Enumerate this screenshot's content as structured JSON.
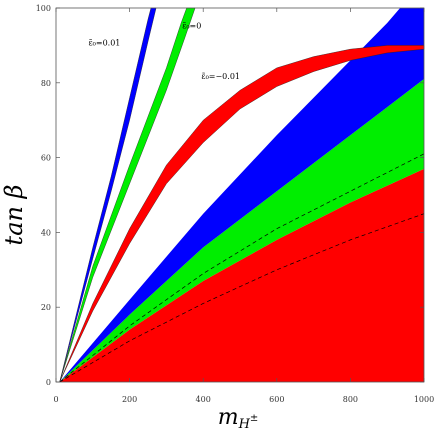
{
  "chart_data": {
    "type": "area",
    "xlabel": "m_{H^{±}}",
    "ylabel": "tan β",
    "xlim": [
      0,
      1000
    ],
    "ylim": [
      0,
      100
    ],
    "grid": false,
    "x_ticks": [
      0,
      200,
      400,
      600,
      800,
      1000
    ],
    "y_ticks": [
      0,
      20,
      40,
      60,
      80,
      100
    ],
    "annotations": [
      {
        "text": "ε̃₀=0.01",
        "x": 175,
        "y": 90
      },
      {
        "text": "ε̃₀=0",
        "x": 395,
        "y": 94.5
      },
      {
        "text": "ε̃₀=−0.01",
        "x": 500,
        "y": 81
      }
    ],
    "colors": {
      "blue": "#0000ff",
      "green": "#00ee00",
      "red": "#ff0000",
      "boundary": "#000000"
    },
    "regions": [
      {
        "color": "blue",
        "upper": [
          [
            10,
            0
          ],
          [
            100,
            26
          ],
          [
            200,
            55
          ],
          [
            300,
            85
          ],
          [
            350,
            97
          ],
          [
            362,
            100
          ]
        ],
        "lower": [
          [
            10,
            0
          ],
          [
            100,
            25
          ],
          [
            200,
            52
          ],
          [
            300,
            80
          ],
          [
            350,
            94
          ],
          [
            375,
            100
          ]
        ],
        "note": "narrow band 0.01 (upper)"
      }
    ]
  },
  "bands": {
    "eps_plus": {
      "color": "blue",
      "upper": [
        [
          10,
          0
        ],
        [
          100,
          36
        ],
        [
          150,
          55
        ],
        [
          200,
          76
        ],
        [
          250,
          97
        ],
        [
          258,
          100
        ]
      ],
      "lower": [
        [
          10,
          0
        ],
        [
          100,
          33
        ],
        [
          150,
          51
        ],
        [
          200,
          70
        ],
        [
          250,
          91
        ],
        [
          272,
          100
        ]
      ]
    },
    "eps_zero": {
      "color": "green",
      "upper": [
        [
          10,
          0
        ],
        [
          100,
          31
        ],
        [
          200,
          58
        ],
        [
          300,
          84
        ],
        [
          340,
          96
        ],
        [
          355,
          100
        ]
      ],
      "lower": [
        [
          10,
          0
        ],
        [
          100,
          28
        ],
        [
          200,
          53
        ],
        [
          300,
          78
        ],
        [
          350,
          92
        ],
        [
          378,
          100
        ]
      ]
    },
    "eps_minus": {
      "color": "red",
      "upper": [
        [
          10,
          0
        ],
        [
          100,
          21
        ],
        [
          200,
          41
        ],
        [
          300,
          58
        ],
        [
          400,
          70
        ],
        [
          500,
          78
        ],
        [
          600,
          84
        ],
        [
          700,
          87
        ],
        [
          800,
          89
        ],
        [
          900,
          90
        ],
        [
          1000,
          90
        ]
      ],
      "lower": [
        [
          10,
          0
        ],
        [
          100,
          19
        ],
        [
          200,
          37
        ],
        [
          300,
          53
        ],
        [
          400,
          64
        ],
        [
          500,
          73
        ],
        [
          600,
          79
        ],
        [
          700,
          83
        ],
        [
          800,
          86
        ],
        [
          900,
          88
        ],
        [
          1000,
          89
        ]
      ]
    },
    "lower_blue": {
      "color": "blue",
      "upper": [
        [
          10,
          0
        ],
        [
          200,
          22
        ],
        [
          400,
          45
        ],
        [
          600,
          66
        ],
        [
          800,
          86
        ],
        [
          900,
          96
        ],
        [
          935,
          100
        ],
        [
          1000,
          100
        ]
      ],
      "lower": [
        [
          10,
          0
        ],
        [
          200,
          18
        ],
        [
          400,
          36
        ],
        [
          600,
          51
        ],
        [
          800,
          66
        ],
        [
          1000,
          81
        ]
      ]
    },
    "lower_green": {
      "color": "green",
      "upper": [
        [
          10,
          0
        ],
        [
          200,
          18
        ],
        [
          400,
          36
        ],
        [
          600,
          51
        ],
        [
          800,
          66
        ],
        [
          1000,
          81
        ]
      ],
      "lower": [
        [
          10,
          0
        ],
        [
          200,
          14
        ],
        [
          400,
          27
        ],
        [
          600,
          38
        ],
        [
          800,
          48
        ],
        [
          1000,
          57
        ]
      ]
    },
    "lower_red": {
      "color": "red",
      "upper": [
        [
          10,
          0
        ],
        [
          200,
          14
        ],
        [
          400,
          27
        ],
        [
          600,
          38
        ],
        [
          800,
          48
        ],
        [
          1000,
          57
        ]
      ],
      "lower": [
        [
          10,
          0
        ],
        [
          1000,
          0
        ]
      ]
    },
    "dashed_lines": [
      [
        [
          10,
          0
        ],
        [
          200,
          11
        ],
        [
          400,
          21
        ],
        [
          600,
          30
        ],
        [
          800,
          38
        ],
        [
          1000,
          45
        ]
      ],
      [
        [
          10,
          0
        ],
        [
          200,
          15
        ],
        [
          400,
          29
        ],
        [
          600,
          41
        ],
        [
          800,
          51
        ],
        [
          1000,
          61
        ]
      ]
    ]
  }
}
